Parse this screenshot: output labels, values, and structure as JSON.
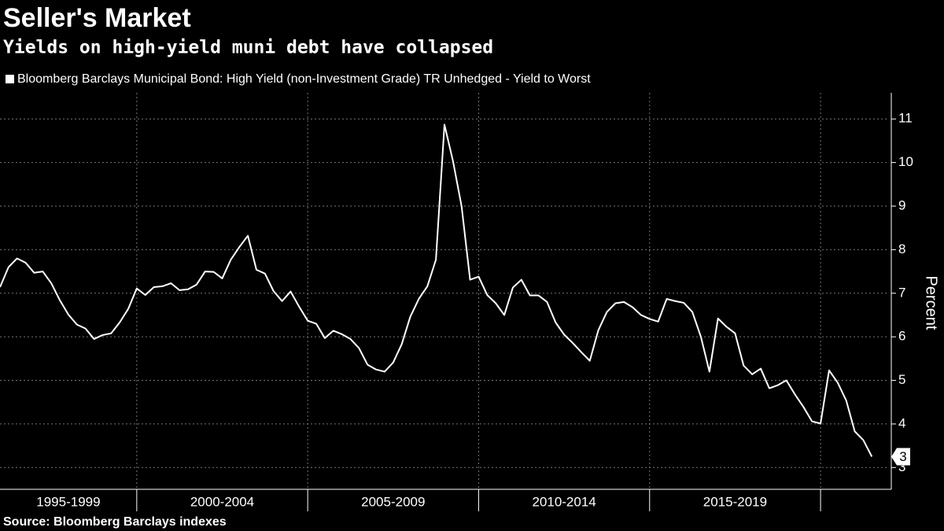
{
  "chart_data": {
    "type": "line",
    "title": "Seller's Market",
    "subtitle": "Yields on high-yield muni debt have collapsed",
    "y_label": "Percent",
    "source": "Source: Bloomberg Barclays indexes",
    "x": [
      1996,
      1996.25,
      1996.5,
      1996.75,
      1997,
      1997.25,
      1997.5,
      1997.75,
      1998,
      1998.25,
      1998.5,
      1998.75,
      1999,
      1999.25,
      1999.5,
      1999.75,
      2000,
      2000.25,
      2000.5,
      2000.75,
      2001,
      2001.25,
      2001.5,
      2001.75,
      2002,
      2002.25,
      2002.5,
      2002.75,
      2003,
      2003.25,
      2003.5,
      2003.75,
      2004,
      2004.25,
      2004.5,
      2004.75,
      2005,
      2005.25,
      2005.5,
      2005.75,
      2006,
      2006.25,
      2006.5,
      2006.75,
      2007,
      2007.25,
      2007.5,
      2007.75,
      2008,
      2008.25,
      2008.5,
      2008.75,
      2009,
      2009.25,
      2009.5,
      2009.75,
      2010,
      2010.25,
      2010.5,
      2010.75,
      2011,
      2011.25,
      2011.5,
      2011.75,
      2012,
      2012.25,
      2012.5,
      2012.75,
      2013,
      2013.25,
      2013.5,
      2013.75,
      2014,
      2014.25,
      2014.5,
      2014.75,
      2015,
      2015.25,
      2015.5,
      2015.75,
      2016,
      2016.25,
      2016.5,
      2016.75,
      2017,
      2017.25,
      2017.5,
      2017.75,
      2018,
      2018.25,
      2018.5,
      2018.75,
      2019,
      2019.25,
      2019.5,
      2019.75,
      2020,
      2020.25,
      2020.5,
      2020.75,
      2021,
      2021.25,
      2021.5
    ],
    "series": [
      {
        "name": "Bloomberg Barclays Municipal Bond: High Yield (non-Investment Grade) TR Unhedged - Yield to Worst",
        "color": "#ffffff",
        "values": [
          7.14,
          7.6,
          7.8,
          7.7,
          7.47,
          7.5,
          7.23,
          6.84,
          6.51,
          6.28,
          6.19,
          5.95,
          6.04,
          6.08,
          6.33,
          6.64,
          7.11,
          6.96,
          7.14,
          7.16,
          7.23,
          7.07,
          7.09,
          7.2,
          7.5,
          7.49,
          7.34,
          7.77,
          8.06,
          8.32,
          7.54,
          7.45,
          7.05,
          6.82,
          7.04,
          6.69,
          6.37,
          6.3,
          5.97,
          6.14,
          6.06,
          5.95,
          5.74,
          5.36,
          5.25,
          5.2,
          5.41,
          5.83,
          6.46,
          6.87,
          7.16,
          7.77,
          10.87,
          10.03,
          9.0,
          7.31,
          7.38,
          6.96,
          6.77,
          6.5,
          7.13,
          7.31,
          6.95,
          6.95,
          6.8,
          6.33,
          6.05,
          5.86,
          5.65,
          5.45,
          6.15,
          6.57,
          6.77,
          6.8,
          6.68,
          6.5,
          6.41,
          6.35,
          6.87,
          6.82,
          6.78,
          6.57,
          6.0,
          5.2,
          6.42,
          6.23,
          6.08,
          5.34,
          5.14,
          5.27,
          4.82,
          4.89,
          5.0,
          4.68,
          4.39,
          4.06,
          4.01,
          5.23,
          4.95,
          4.54,
          3.83,
          3.63,
          3.25
        ],
        "end_label": "3"
      }
    ],
    "xlim": [
      1996,
      2022
    ],
    "xticks": [
      2000,
      2005,
      2010,
      2015,
      2020
    ],
    "x_periods": [
      {
        "label": "1995-1999",
        "from": 1995,
        "to": 2000
      },
      {
        "label": "2000-2004",
        "from": 2000,
        "to": 2005
      },
      {
        "label": "2005-2009",
        "from": 2005,
        "to": 2010
      },
      {
        "label": "2010-2014",
        "from": 2010,
        "to": 2015
      },
      {
        "label": "2015-2019",
        "from": 2015,
        "to": 2020
      }
    ],
    "ylim": [
      2.5,
      11.6
    ],
    "yticks": [
      3,
      4,
      5,
      6,
      7,
      8,
      9,
      10,
      11
    ],
    "grid": true
  }
}
